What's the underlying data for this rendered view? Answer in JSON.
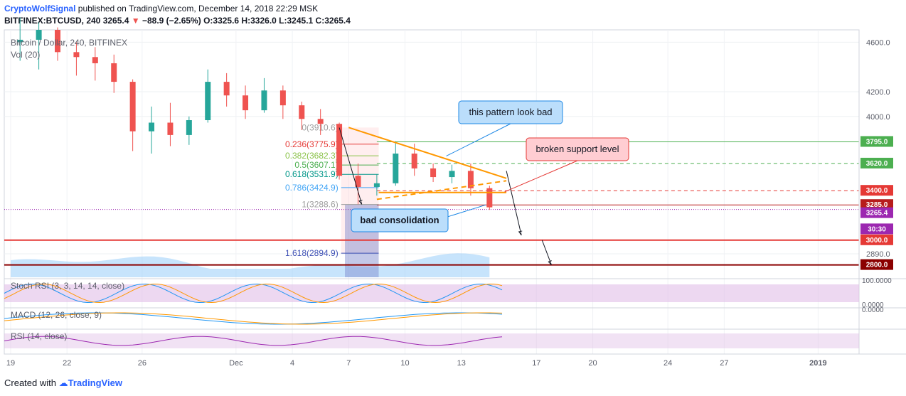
{
  "header": {
    "author": "CryptoWolfSignal",
    "published": " published on TradingView.com, December 14, 2018 22:29 MSK",
    "symbol": "BITFINEX:BTCUSD, 240",
    "last": "3265.4",
    "change": "−88.9 (−2.65%)",
    "open_label": "O:",
    "open": "3325.6",
    "high_label": "H:",
    "high": "3326.0",
    "low_label": "L:",
    "low": "3245.1",
    "close_label": "C:",
    "close": "3265.4"
  },
  "overlay": {
    "series_title": "Bitcoin / Dollar, 240, BITFINEX",
    "vol_label": "Vol (20)"
  },
  "footer": {
    "created_with": "Created with",
    "brand": "TradingView"
  },
  "chart_data": {
    "type": "candlestick",
    "symbol": "BTCUSD",
    "interval": "240",
    "price_axis": {
      "min": 2700,
      "max": 4700,
      "ticks": [
        "4600.0",
        "4200.0",
        "4000.0",
        "2890.0"
      ],
      "tick_values": [
        4600,
        4200,
        4000,
        2890
      ]
    },
    "x_axis": {
      "ticks": [
        {
          "label": "19",
          "day": 0
        },
        {
          "label": "22",
          "day": 3
        },
        {
          "label": "26",
          "day": 7
        },
        {
          "label": "Dec",
          "day": 12
        },
        {
          "label": "4",
          "day": 15
        },
        {
          "label": "7",
          "day": 18
        },
        {
          "label": "10",
          "day": 21
        },
        {
          "label": "13",
          "day": 24
        },
        {
          "label": "17",
          "day": 28
        },
        {
          "label": "20",
          "day": 31
        },
        {
          "label": "24",
          "day": 35
        },
        {
          "label": "27",
          "day": 38
        },
        {
          "label": "2019",
          "day": 43
        }
      ],
      "day_range": [
        0,
        44.5
      ]
    },
    "candles_daily_close": [
      {
        "day": 0,
        "o": 4600,
        "h": 4800,
        "l": 4450,
        "c": 4620
      },
      {
        "day": 1,
        "o": 4620,
        "h": 4760,
        "l": 4380,
        "c": 4700
      },
      {
        "day": 2,
        "o": 4700,
        "h": 4720,
        "l": 4450,
        "c": 4520
      },
      {
        "day": 3,
        "o": 4520,
        "h": 4600,
        "l": 4330,
        "c": 4480
      },
      {
        "day": 4,
        "o": 4480,
        "h": 4560,
        "l": 4290,
        "c": 4430
      },
      {
        "day": 5,
        "o": 4430,
        "h": 4500,
        "l": 4190,
        "c": 4280
      },
      {
        "day": 6,
        "o": 4280,
        "h": 4300,
        "l": 3720,
        "c": 3880
      },
      {
        "day": 7,
        "o": 3880,
        "h": 4080,
        "l": 3700,
        "c": 3950
      },
      {
        "day": 8,
        "o": 3950,
        "h": 4110,
        "l": 3760,
        "c": 3850
      },
      {
        "day": 9,
        "o": 3850,
        "h": 4000,
        "l": 3770,
        "c": 3970
      },
      {
        "day": 10,
        "o": 3970,
        "h": 4380,
        "l": 3950,
        "c": 4280
      },
      {
        "day": 11,
        "o": 4280,
        "h": 4350,
        "l": 4080,
        "c": 4170
      },
      {
        "day": 12,
        "o": 4170,
        "h": 4250,
        "l": 3980,
        "c": 4050
      },
      {
        "day": 13,
        "o": 4050,
        "h": 4310,
        "l": 4030,
        "c": 4210
      },
      {
        "day": 14,
        "o": 4210,
        "h": 4250,
        "l": 3980,
        "c": 4090
      },
      {
        "day": 15,
        "o": 4090,
        "h": 4120,
        "l": 3890,
        "c": 3980
      },
      {
        "day": 16,
        "o": 3980,
        "h": 4060,
        "l": 3850,
        "c": 3940
      },
      {
        "day": 17,
        "o": 3940,
        "h": 3950,
        "l": 3490,
        "c": 3520
      },
      {
        "day": 18,
        "o": 3520,
        "h": 3620,
        "l": 3290,
        "c": 3430
      },
      {
        "day": 19,
        "o": 3430,
        "h": 3530,
        "l": 3360,
        "c": 3460
      },
      {
        "day": 20,
        "o": 3460,
        "h": 3800,
        "l": 3440,
        "c": 3700
      },
      {
        "day": 21,
        "o": 3700,
        "h": 3780,
        "l": 3520,
        "c": 3580
      },
      {
        "day": 22,
        "o": 3580,
        "h": 3620,
        "l": 3470,
        "c": 3510
      },
      {
        "day": 23,
        "o": 3510,
        "h": 3610,
        "l": 3460,
        "c": 3560
      },
      {
        "day": 24,
        "o": 3560,
        "h": 3620,
        "l": 3360,
        "c": 3420
      },
      {
        "day": 25,
        "o": 3420,
        "h": 3440,
        "l": 3245,
        "c": 3265.4
      }
    ],
    "horizontal_levels": [
      {
        "value": 3795.0,
        "label": "3795.0",
        "color": "#4caf50",
        "style": "solid"
      },
      {
        "value": 3620.0,
        "label": "3620.0",
        "color": "#4caf50",
        "style": "dashed"
      },
      {
        "value": 3400.0,
        "label": "3400.0",
        "color": "#e53935",
        "style": "dashed"
      },
      {
        "value": 3285.0,
        "label": "3285.0",
        "color": "#b71c1c",
        "style": "solid"
      },
      {
        "value": 3000.0,
        "label": "3000.0",
        "color": "#e53935",
        "style": "solid"
      },
      {
        "value": 2800.0,
        "label": "2800.0",
        "color": "#8b0000",
        "style": "solid"
      }
    ],
    "price_badges": [
      {
        "value": 3265.4,
        "label": "3265.4",
        "color": "#9c27b0"
      },
      {
        "value": 3215,
        "label": "30:30",
        "color": "#9c27b0"
      }
    ],
    "fibonacci": [
      {
        "ratio": "0",
        "price": "3910.6",
        "value": 3910.6
      },
      {
        "ratio": "0.236",
        "price": "3775.9",
        "value": 3775.9,
        "color": "#e53935"
      },
      {
        "ratio": "0.382",
        "price": "3682.3",
        "value": 3682.3,
        "color": "#8bc34a"
      },
      {
        "ratio": "0.5",
        "price": "3607.1",
        "value": 3607.1,
        "color": "#4caf50"
      },
      {
        "ratio": "0.618",
        "price": "3531.9",
        "value": 3531.9,
        "color": "#009688"
      },
      {
        "ratio": "0.786",
        "price": "3424.9",
        "value": 3424.9,
        "color": "#42a5f5"
      },
      {
        "ratio": "1",
        "price": "3288.6",
        "value": 3288.6,
        "color": "#9e9e9e"
      },
      {
        "ratio": "1.618",
        "price": "2894.9",
        "value": 2894.9,
        "color": "#3f51b5"
      }
    ],
    "callouts": [
      {
        "text": "this pattern look bad"
      },
      {
        "text": "broken support level"
      },
      {
        "text": "bad consolidation"
      }
    ],
    "indicators": [
      {
        "name": "Stoch RSI",
        "label": "Stoch RSI (3, 3, 14, 14, close)",
        "ticks": [
          "100.0000",
          "0.0000"
        ]
      },
      {
        "name": "MACD",
        "label": "MACD (12, 26, close, 9)",
        "ticks": [
          "0.0000"
        ]
      },
      {
        "name": "RSI",
        "label": "RSI (14, close)",
        "ticks": []
      }
    ]
  }
}
